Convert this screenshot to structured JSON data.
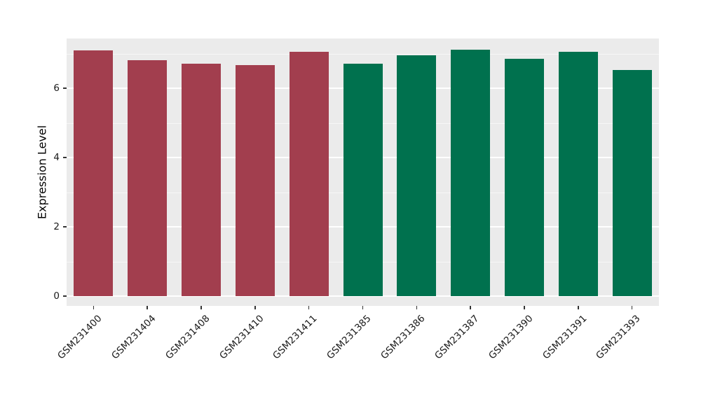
{
  "chart_data": {
    "type": "bar",
    "title": "",
    "xlabel": "",
    "ylabel": "Expression Level",
    "categories": [
      "GSM231400",
      "GSM231404",
      "GSM231408",
      "GSM231410",
      "GSM231411",
      "GSM231385",
      "GSM231386",
      "GSM231387",
      "GSM231390",
      "GSM231391",
      "GSM231393"
    ],
    "values": [
      7.09,
      6.8,
      6.71,
      6.66,
      7.05,
      6.7,
      6.95,
      7.12,
      6.84,
      7.06,
      6.52
    ],
    "bar_colors": [
      "#A23E4E",
      "#A23E4E",
      "#A23E4E",
      "#A23E4E",
      "#A23E4E",
      "#00714E",
      "#00714E",
      "#00714E",
      "#00714E",
      "#00714E",
      "#00714E"
    ],
    "group_colors": {
      "group1": "#A23E4E",
      "group2": "#00714E"
    },
    "ylim": [
      0,
      7.5
    ],
    "yticks": [
      0,
      2,
      4,
      6
    ],
    "minor_yticks": [
      1,
      3,
      5,
      7
    ],
    "grid": true,
    "legend": "none",
    "panel_background": "#EBEBEB",
    "gridline_color": "#FFFFFF",
    "tick_text_color": "#1a1a1a"
  }
}
